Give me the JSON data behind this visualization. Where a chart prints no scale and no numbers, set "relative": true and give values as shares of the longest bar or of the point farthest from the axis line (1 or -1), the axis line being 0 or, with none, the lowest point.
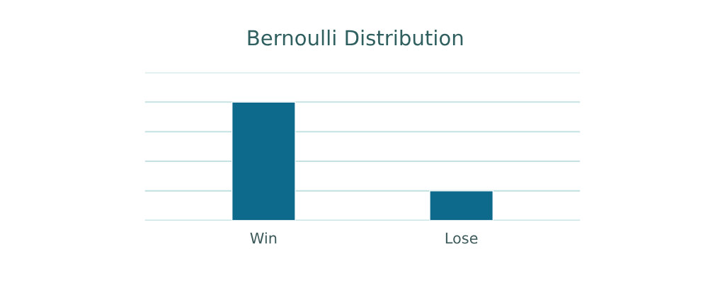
{
  "chart_data": {
    "type": "bar",
    "title": "Bernoulli Distribution",
    "categories": [
      "Win",
      "Lose"
    ],
    "values": [
      1,
      0.25
    ],
    "color": "#0e6a8c",
    "relative": true,
    "grid": "y"
  }
}
